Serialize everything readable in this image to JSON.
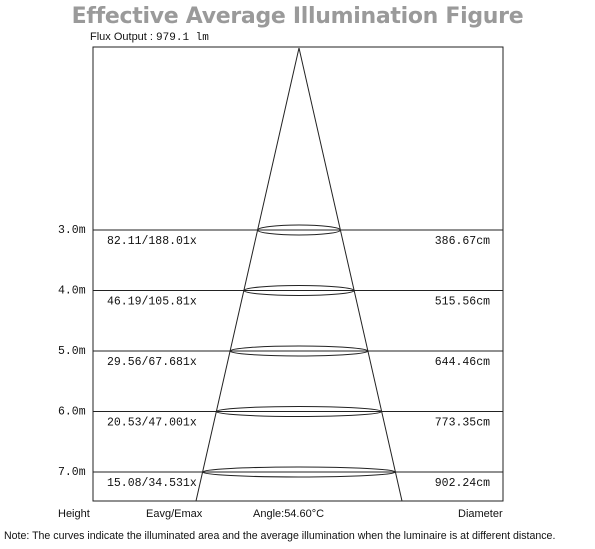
{
  "title": "Effective Average Illumination Figure",
  "flux": {
    "label": "Flux Output :",
    "value": "979.1 lm"
  },
  "rows": [
    {
      "height": "3.0m",
      "illum": "82.11/188.01x",
      "diameter": "386.67cm"
    },
    {
      "height": "4.0m",
      "illum": "46.19/105.81x",
      "diameter": "515.56cm"
    },
    {
      "height": "5.0m",
      "illum": "29.56/67.681x",
      "diameter": "644.46cm"
    },
    {
      "height": "6.0m",
      "illum": "20.53/47.001x",
      "diameter": "773.35cm"
    },
    {
      "height": "7.0m",
      "illum": "15.08/34.531x",
      "diameter": "902.24cm"
    }
  ],
  "footer": {
    "height_label": "Height",
    "illum_label": "Eavg/Emax",
    "angle_label": "Angle:54.60°C",
    "diameter_label": "Diameter"
  },
  "note": "Note: The curves indicate the illuminated area and the average illumination when the luminaire is at different distance."
}
